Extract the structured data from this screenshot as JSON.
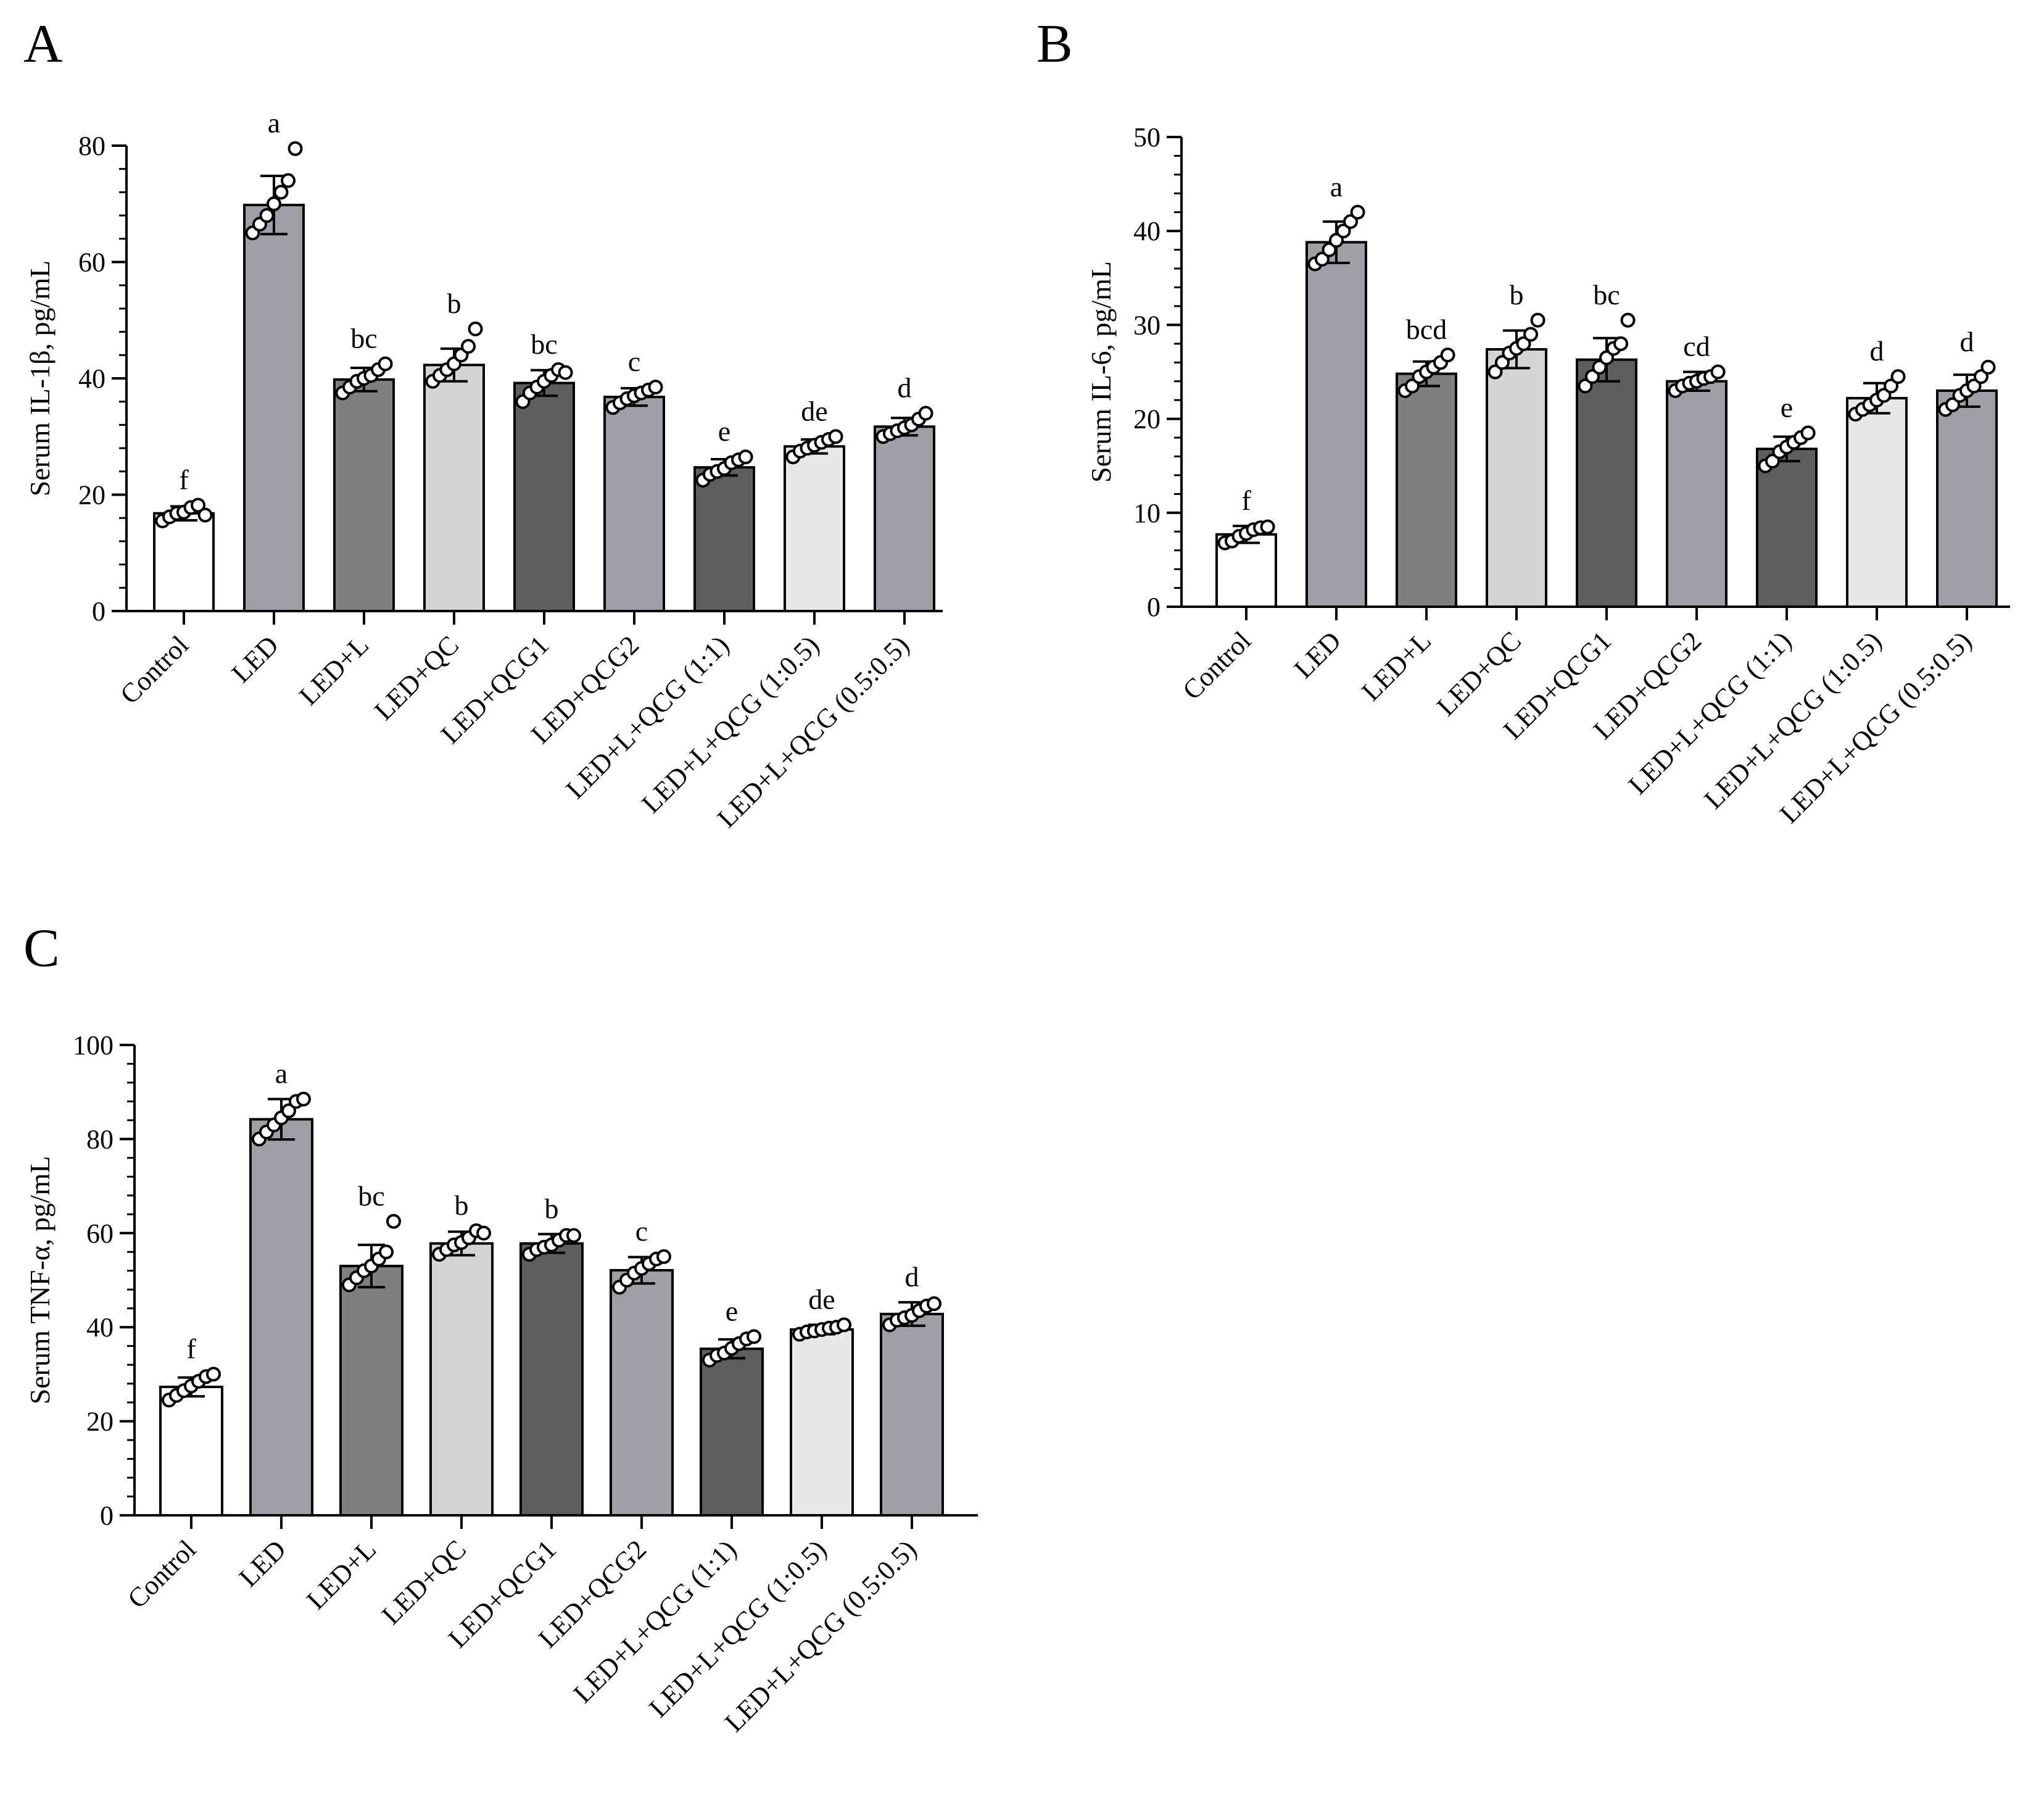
{
  "colors": {
    "Control": "#ffffff",
    "LED": "#a09fa6",
    "LED+L": "#7f7f7f",
    "LED+QC": "#d4d4d4",
    "LED+QCG1": "#5e5e5e",
    "LED+QCG2": "#a09fa6",
    "LED+L+QCG (1:1)": "#5e5e5e",
    "LED+L+QCG (1:0.5)": "#e8e8e8",
    "LED+L+QCG (0.5:0.5)": "#a09fa6"
  },
  "chart_data": [
    {
      "panel": "A",
      "type": "bar",
      "ylabel": "Serum  IL-1β, pg/mL",
      "ylim": [
        0,
        80
      ],
      "yticks": [
        0,
        20,
        40,
        60,
        80
      ],
      "categories": [
        "Control",
        "LED",
        "LED+L",
        "LED+QC",
        "LED+QCG1",
        "LED+QCG2",
        "LED+L+QCG (1:1)",
        "LED+L+QCG (1:0.5)",
        "LED+L+QCG (0.5:0.5)"
      ],
      "values": [
        16.8,
        69.8,
        39.8,
        42.3,
        39.2,
        36.8,
        24.7,
        28.3,
        31.7
      ],
      "errors": [
        1.2,
        5.0,
        2.0,
        2.8,
        2.2,
        1.5,
        1.4,
        1.2,
        1.5
      ],
      "significance": [
        "f",
        "a",
        "bc",
        "b",
        "bc",
        "c",
        "e",
        "de",
        "d"
      ],
      "points": [
        [
          15.5,
          16.2,
          16.8,
          17.0,
          17.8,
          18.2,
          16.5
        ],
        [
          65,
          66.5,
          68,
          70,
          72,
          74,
          79.5
        ],
        [
          37.5,
          38.5,
          39.5,
          40,
          40.5,
          41.5,
          42.5
        ],
        [
          39.5,
          40.5,
          41.5,
          42.5,
          44,
          45.5,
          48.5
        ],
        [
          36,
          37.5,
          38.5,
          39.5,
          40.5,
          41.5,
          41
        ],
        [
          35,
          35.8,
          36.5,
          37,
          37.5,
          38,
          38.5
        ],
        [
          22.5,
          23.5,
          24,
          24.5,
          25.5,
          26,
          26.5
        ],
        [
          26.5,
          27.5,
          28,
          28.5,
          29,
          29.5,
          30
        ],
        [
          30,
          30.5,
          31,
          31.5,
          32,
          33,
          34
        ]
      ]
    },
    {
      "panel": "B",
      "type": "bar",
      "ylabel": "Serum  IL-6, pg/mL",
      "ylim": [
        0,
        50
      ],
      "yticks": [
        0,
        10,
        20,
        30,
        40,
        50
      ],
      "categories": [
        "Control",
        "LED",
        "LED+L",
        "LED+QC",
        "LED+QCG1",
        "LED+QCG2",
        "LED+L+QCG (1:1)",
        "LED+L+QCG (1:0.5)",
        "LED+L+QCG (0.5:0.5)"
      ],
      "values": [
        7.7,
        38.8,
        24.8,
        27.4,
        26.3,
        24.0,
        16.8,
        22.2,
        23.0
      ],
      "errors": [
        0.9,
        2.2,
        1.3,
        2.0,
        2.3,
        1.0,
        1.3,
        1.6,
        1.7
      ],
      "significance": [
        "f",
        "a",
        "bcd",
        "b",
        "bc",
        "cd",
        "e",
        "d",
        "d"
      ],
      "points": [
        [
          6.8,
          7.0,
          7.5,
          7.8,
          8.2,
          8.4,
          8.5
        ],
        [
          36.5,
          37,
          38,
          39,
          40,
          41,
          42
        ],
        [
          23,
          23.5,
          24.5,
          25,
          25.5,
          26,
          26.8
        ],
        [
          25,
          26,
          27,
          27.5,
          28,
          29,
          30.5
        ],
        [
          23.5,
          24.5,
          25.5,
          26.5,
          27.5,
          28,
          30.5
        ],
        [
          23,
          23.5,
          23.8,
          24,
          24.3,
          24.5,
          25
        ],
        [
          15,
          15.5,
          16.5,
          17,
          17.5,
          18,
          18.5
        ],
        [
          20.5,
          21,
          21.5,
          22,
          22.5,
          23.5,
          24.5
        ],
        [
          21,
          21.5,
          22.5,
          23,
          23.5,
          24.5,
          25.5
        ]
      ]
    },
    {
      "panel": "C",
      "type": "bar",
      "ylabel": "Serum  TNF-α, pg/mL",
      "ylim": [
        0,
        100
      ],
      "yticks": [
        0,
        20,
        40,
        60,
        80,
        100
      ],
      "categories": [
        "Control",
        "LED",
        "LED+L",
        "LED+QC",
        "LED+QCG1",
        "LED+QCG2",
        "LED+L+QCG (1:1)",
        "LED+L+QCG (1:0.5)",
        "LED+L+QCG (0.5:0.5)"
      ],
      "values": [
        27.3,
        84.2,
        53.0,
        57.8,
        57.8,
        52.1,
        35.4,
        39.5,
        42.8
      ],
      "errors": [
        2.0,
        4.3,
        4.5,
        2.5,
        2.0,
        2.8,
        2.0,
        1.0,
        2.5
      ],
      "significance": [
        "f",
        "a",
        "bc",
        "b",
        "b",
        "c",
        "e",
        "de",
        "d"
      ],
      "points": [
        [
          24.5,
          25.5,
          26.5,
          27.5,
          28.5,
          29.5,
          30
        ],
        [
          80,
          81.5,
          83,
          84.5,
          86,
          88,
          88.5
        ],
        [
          49,
          50.5,
          52,
          53,
          54.5,
          56,
          62.5
        ],
        [
          55.5,
          56.5,
          57.5,
          58,
          59,
          60.5,
          60
        ],
        [
          55.5,
          56.5,
          57,
          57.5,
          58.5,
          59.5,
          59.5
        ],
        [
          48.5,
          50,
          51.5,
          52.5,
          53.5,
          54.5,
          55
        ],
        [
          33,
          34,
          34.5,
          35.5,
          36.5,
          37.5,
          38
        ],
        [
          38.5,
          39,
          39.2,
          39.5,
          39.8,
          40,
          40.5
        ],
        [
          40.5,
          41.5,
          42,
          42.5,
          43.5,
          44.5,
          45
        ]
      ]
    }
  ]
}
